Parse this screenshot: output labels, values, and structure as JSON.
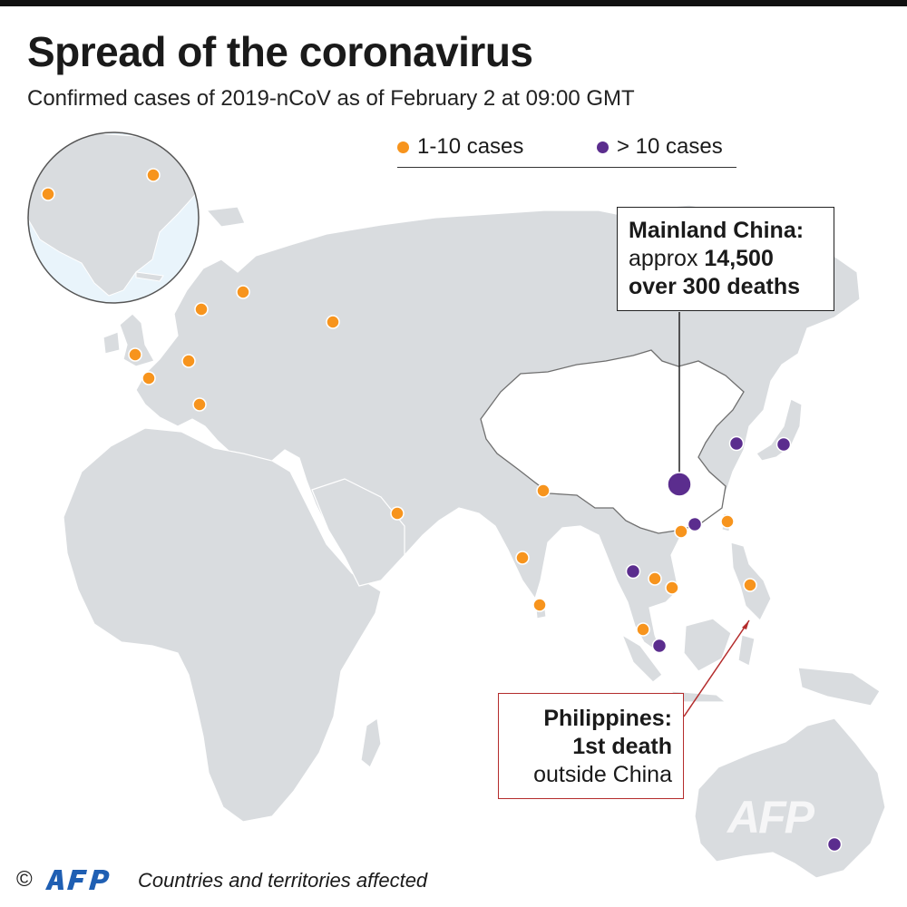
{
  "title": "Spread of the coronavirus",
  "subtitle": "Confirmed cases of 2019-nCoV as of February 2 at 09:00 GMT",
  "legend": {
    "small": {
      "label": "1-10 cases",
      "color": "#f7941d"
    },
    "large": {
      "label": "> 10 cases",
      "color": "#5b2d8e"
    }
  },
  "callouts": {
    "china": {
      "line1": "Mainland China:",
      "line2_prefix": "approx ",
      "line2_value": "14,500",
      "line3": "over 300 deaths"
    },
    "philippines": {
      "line1": "Philippines:",
      "line2": "1st death",
      "line3": "outside China"
    }
  },
  "footer": {
    "copyright": "©",
    "logo_text": "AFP",
    "note": "Countries and territories affected"
  },
  "watermark": "AFP",
  "colors": {
    "land": "#d9dcdf",
    "inset_water": "#e9f4fb",
    "callout_border_ph": "#b42c2c"
  },
  "markers": [
    {
      "place": "United States (West)",
      "category": "small"
    },
    {
      "place": "Canada",
      "category": "small"
    },
    {
      "place": "Sweden",
      "category": "small"
    },
    {
      "place": "Finland",
      "category": "small"
    },
    {
      "place": "Russia",
      "category": "small"
    },
    {
      "place": "United Kingdom",
      "category": "small"
    },
    {
      "place": "Germany",
      "category": "small"
    },
    {
      "place": "France",
      "category": "small"
    },
    {
      "place": "Italy",
      "category": "small"
    },
    {
      "place": "United Arab Emirates",
      "category": "small"
    },
    {
      "place": "Nepal",
      "category": "small"
    },
    {
      "place": "India",
      "category": "small"
    },
    {
      "place": "Sri Lanka",
      "category": "small"
    },
    {
      "place": "Mainland China",
      "category": "china"
    },
    {
      "place": "South Korea",
      "category": "large"
    },
    {
      "place": "Japan",
      "category": "large"
    },
    {
      "place": "Hong Kong",
      "category": "large"
    },
    {
      "place": "Macau",
      "category": "small"
    },
    {
      "place": "Taiwan",
      "category": "small"
    },
    {
      "place": "Thailand",
      "category": "large"
    },
    {
      "place": "Cambodia",
      "category": "small"
    },
    {
      "place": "Vietnam",
      "category": "small"
    },
    {
      "place": "Philippines",
      "category": "small"
    },
    {
      "place": "Malaysia",
      "category": "small"
    },
    {
      "place": "Singapore",
      "category": "large"
    },
    {
      "place": "Australia",
      "category": "large"
    }
  ]
}
